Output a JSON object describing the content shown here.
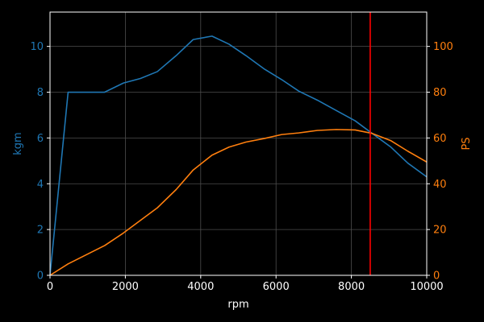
{
  "colors": {
    "background": "#000000",
    "axis": "#ffffff",
    "grid": "#4d4d4d",
    "torque": "#1f77b4",
    "power": "#ff7f0e",
    "redline": "#ff0000"
  },
  "chart_data": {
    "type": "line",
    "title": "",
    "xlabel": "rpm",
    "ylabel_left": "kgm",
    "ylabel_right": "PS",
    "xlim": [
      0,
      10000
    ],
    "ylim_left": [
      0,
      11.5
    ],
    "ylim_right": [
      0,
      115
    ],
    "x_ticks": [
      0,
      2000,
      4000,
      6000,
      8000,
      10000
    ],
    "y_left_ticks": [
      0,
      2,
      4,
      6,
      8,
      10
    ],
    "y_right_ticks": [
      0,
      20,
      40,
      60,
      80,
      100
    ],
    "grid": true,
    "redline_rpm": 8500,
    "series": [
      {
        "axis": "left",
        "color": "#1f77b4",
        "x": [
          0,
          480,
          1450,
          1950,
          2400,
          2850,
          3350,
          3800,
          4300,
          4750,
          5200,
          5700,
          6150,
          6600,
          7100,
          7600,
          8100,
          8550,
          9050,
          9500,
          10000
        ],
        "values": [
          0,
          8.0,
          8.0,
          8.4,
          8.6,
          8.9,
          9.6,
          10.3,
          10.45,
          10.1,
          9.6,
          9.0,
          8.55,
          8.05,
          7.65,
          7.2,
          6.75,
          6.2,
          5.6,
          4.9,
          4.3
        ]
      },
      {
        "axis": "right",
        "color": "#ff7f0e",
        "x": [
          0,
          480,
          1450,
          1950,
          2400,
          2850,
          3350,
          3800,
          4300,
          4750,
          5200,
          5700,
          6150,
          6600,
          7100,
          7600,
          8100,
          8550,
          9050,
          9500,
          10000
        ],
        "values": [
          0,
          5.0,
          13.0,
          18.5,
          24.0,
          29.5,
          37.5,
          46.0,
          52.5,
          56.0,
          58.2,
          59.8,
          61.5,
          62.2,
          63.3,
          63.7,
          63.5,
          62.0,
          58.8,
          54.2,
          49.5
        ]
      }
    ]
  }
}
